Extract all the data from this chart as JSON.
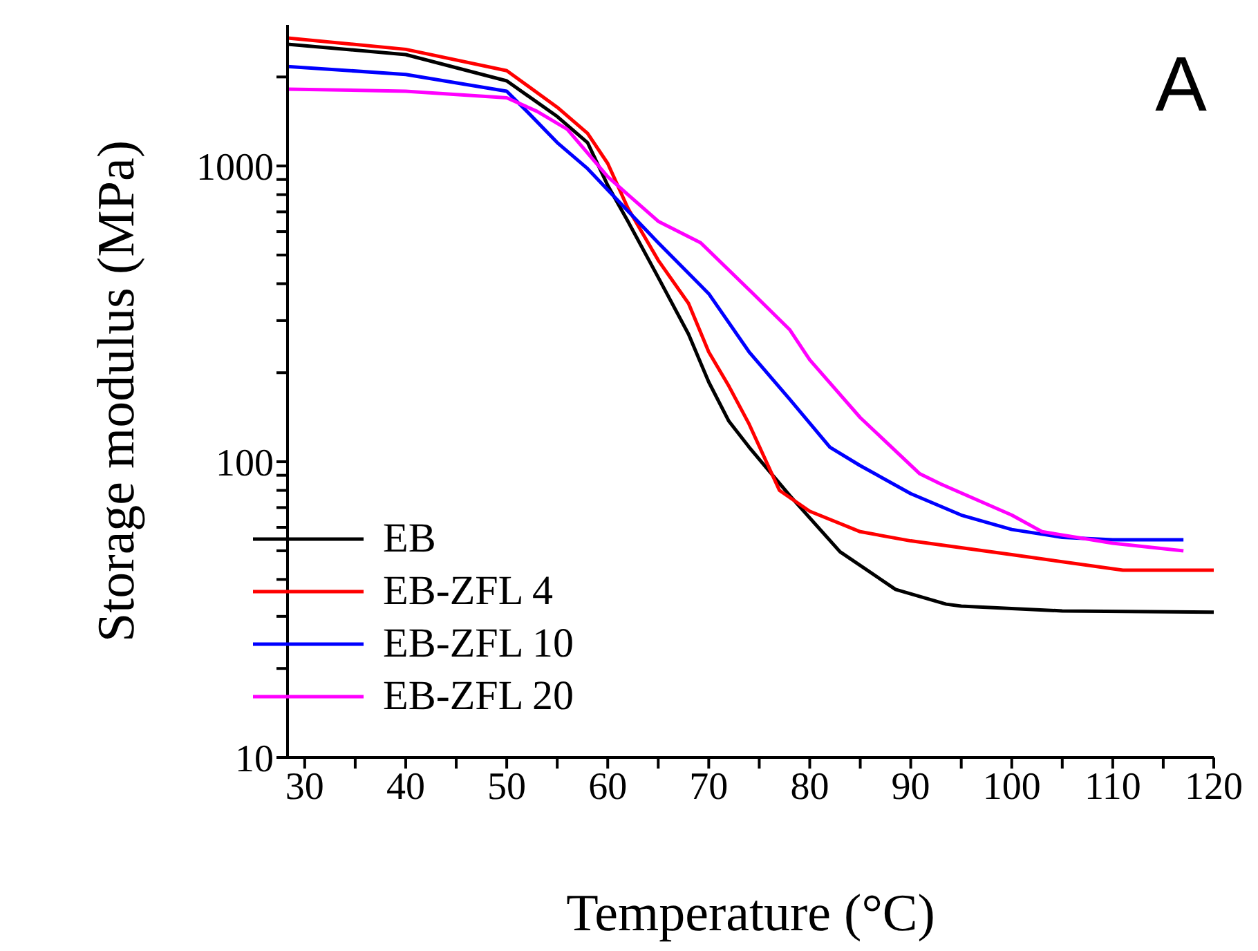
{
  "chart_data": {
    "type": "line",
    "xlabel": "Temperature (°C)",
    "ylabel": "Storage modulus (MPa)",
    "annotations": [
      "A"
    ],
    "log": "y",
    "grid": false,
    "legend": "bottom left",
    "marker": "none",
    "line_style": "solid",
    "xlim": [
      28.3,
      120
    ],
    "xticks": [
      30,
      {
        "value": 35,
        "label": null
      },
      40,
      {
        "value": 45,
        "label": null
      },
      50,
      {
        "value": 55,
        "label": null
      },
      60,
      {
        "value": 65,
        "label": null
      },
      70,
      {
        "value": 75,
        "label": null
      },
      80,
      {
        "value": 85,
        "label": null
      },
      90,
      {
        "value": 95,
        "label": null
      },
      100,
      {
        "value": 105,
        "label": null
      },
      110,
      {
        "value": 115,
        "label": null
      },
      120
    ],
    "ylim": [
      10,
      3000
    ],
    "yticks": [
      10,
      {
        "value": 20,
        "label": null
      },
      {
        "value": 30,
        "label": null
      },
      {
        "value": 40,
        "label": null
      },
      {
        "value": 50,
        "label": null
      },
      {
        "value": 60,
        "label": null
      },
      {
        "value": 70,
        "label": null
      },
      {
        "value": 80,
        "label": null
      },
      {
        "value": 90,
        "label": null
      },
      100,
      {
        "value": 200,
        "label": null
      },
      {
        "value": 300,
        "label": null
      },
      {
        "value": 400,
        "label": null
      },
      {
        "value": 500,
        "label": null
      },
      {
        "value": 600,
        "label": null
      },
      {
        "value": 700,
        "label": null
      },
      {
        "value": 800,
        "label": null
      },
      {
        "value": 900,
        "label": null
      },
      1000,
      {
        "value": 2000,
        "label": null
      }
    ],
    "series": [
      {
        "name": "EB",
        "color": "#000000",
        "x": [
          28.3,
          40,
          50,
          55,
          58,
          60,
          62,
          65,
          68,
          70,
          72,
          74,
          78,
          83,
          88.5,
          93.5,
          95,
          105,
          120
        ],
        "values": [
          2580,
          2380,
          1940,
          1470,
          1200,
          860,
          650,
          420,
          270,
          186,
          137,
          112,
          77,
          49.6,
          37,
          33,
          32.5,
          31.3,
          31
        ]
      },
      {
        "name": "EB-ZFL 4",
        "color": "#ff0000",
        "x": [
          28.3,
          40,
          50,
          55,
          58,
          60,
          62,
          65,
          68,
          70,
          72,
          74,
          77,
          80,
          85,
          90,
          100,
          111,
          120
        ],
        "values": [
          2710,
          2480,
          2100,
          1580,
          1290,
          1020,
          720,
          480,
          343,
          235,
          180,
          134,
          80,
          68,
          58,
          54,
          48.5,
          43,
          43
        ]
      },
      {
        "name": "EB-ZFL 10",
        "color": "#0000ff",
        "x": [
          28.3,
          40,
          50,
          52,
          55,
          58,
          60,
          65,
          70,
          74,
          78,
          82,
          85,
          90,
          95,
          100,
          105,
          110,
          117
        ],
        "values": [
          2170,
          2040,
          1790,
          1530,
          1200,
          980,
          830,
          550,
          370,
          235,
          163,
          112,
          97,
          78,
          66,
          59,
          55.5,
          54.5,
          54.5
        ]
      },
      {
        "name": "EB-ZFL 20",
        "color": "#ff00ff",
        "x": [
          28.3,
          40,
          50,
          53,
          56,
          60,
          62,
          65,
          69.2,
          74.4,
          78,
          80,
          85,
          90.9,
          93,
          100,
          103,
          110,
          117
        ],
        "values": [
          1820,
          1790,
          1700,
          1530,
          1330,
          920,
          800,
          650,
          550,
          370,
          280,
          221,
          141,
          91,
          84,
          66,
          58,
          53,
          50
        ]
      }
    ]
  }
}
